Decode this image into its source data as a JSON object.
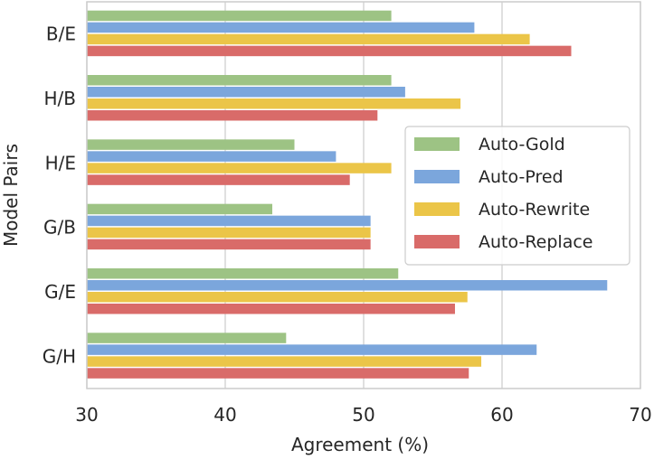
{
  "chart_data": {
    "type": "bar",
    "orientation": "horizontal",
    "categories": [
      "B/E",
      "H/B",
      "H/E",
      "G/B",
      "G/E",
      "G/H"
    ],
    "series": [
      {
        "name": "Auto-Gold",
        "color": "#9dc384",
        "values": [
          52.0,
          52.0,
          45.0,
          43.4,
          52.5,
          44.4
        ]
      },
      {
        "name": "Auto-Pred",
        "color": "#7ba6dc",
        "values": [
          58.0,
          53.0,
          48.0,
          50.5,
          67.6,
          62.5
        ]
      },
      {
        "name": "Auto-Rewrite",
        "color": "#ebc548",
        "values": [
          62.0,
          57.0,
          52.0,
          50.5,
          57.5,
          58.5
        ]
      },
      {
        "name": "Auto-Replace",
        "color": "#d96b69",
        "values": [
          65.0,
          51.0,
          49.0,
          50.5,
          56.6,
          57.6
        ]
      }
    ],
    "xlabel": "Agreement (%)",
    "ylabel": "Model Pairs",
    "xlim": [
      30,
      70
    ],
    "xticks": [
      "30",
      "40",
      "50",
      "60",
      "70"
    ],
    "grid": "vertical",
    "legend_position": "center-right"
  }
}
